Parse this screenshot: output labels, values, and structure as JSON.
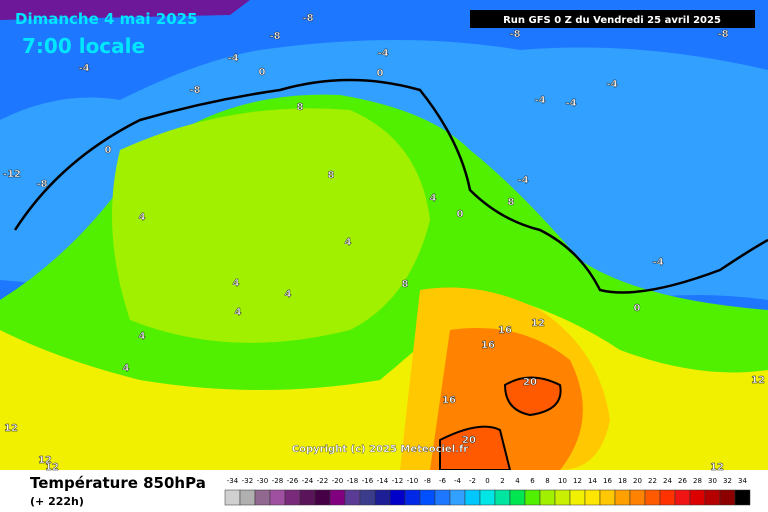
{
  "header": {
    "date": "Dimanche 4 mai 2025",
    "time": "7:00 locale",
    "run": "Run GFS 0 Z du Vendredi 25 avril 2025",
    "copyright": "Copyright (c) 2025 Meteociel.fr"
  },
  "footer": {
    "title": "Température 850hPa",
    "step": "(+ 222h)"
  },
  "legend": {
    "ticks": [
      -34,
      -32,
      -30,
      -28,
      -26,
      -24,
      -22,
      -20,
      -18,
      -16,
      -14,
      -12,
      -10,
      -8,
      -6,
      -4,
      -2,
      0,
      2,
      4,
      6,
      8,
      10,
      12,
      14,
      16,
      18,
      20,
      22,
      24,
      26,
      28,
      30,
      32,
      34
    ],
    "colors": [
      "#d0d0d0",
      "#b0b0b0",
      "#906890",
      "#a050a0",
      "#7a2a7a",
      "#5a145a",
      "#460046",
      "#800080",
      "#5a3c96",
      "#3c3c8c",
      "#1e1e96",
      "#0000c8",
      "#0028e6",
      "#0050ff",
      "#1e78ff",
      "#32a0ff",
      "#00c8ff",
      "#00e6e6",
      "#00e6a0",
      "#00e650",
      "#50f000",
      "#a0f000",
      "#c8f000",
      "#f0f000",
      "#ffe600",
      "#ffc800",
      "#ffa000",
      "#ff8200",
      "#ff5a00",
      "#ff3200",
      "#f01414",
      "#dc0000",
      "#b40000",
      "#8c0000",
      "#000000"
    ]
  },
  "labels": [
    "-8",
    "-8",
    "-8",
    "-8",
    "-8",
    "-8",
    "-4",
    "-4",
    "-4",
    "-4",
    "-4",
    "-4",
    "-4",
    "-4",
    "0",
    "0",
    "0",
    "0",
    "0",
    "-12",
    "8",
    "8",
    "8",
    "8",
    "4",
    "4",
    "4",
    "4",
    "4",
    "4",
    "4",
    "4",
    "12",
    "12",
    "12",
    "12",
    "12",
    "12",
    "16",
    "16",
    "16",
    "20",
    "20"
  ]
}
